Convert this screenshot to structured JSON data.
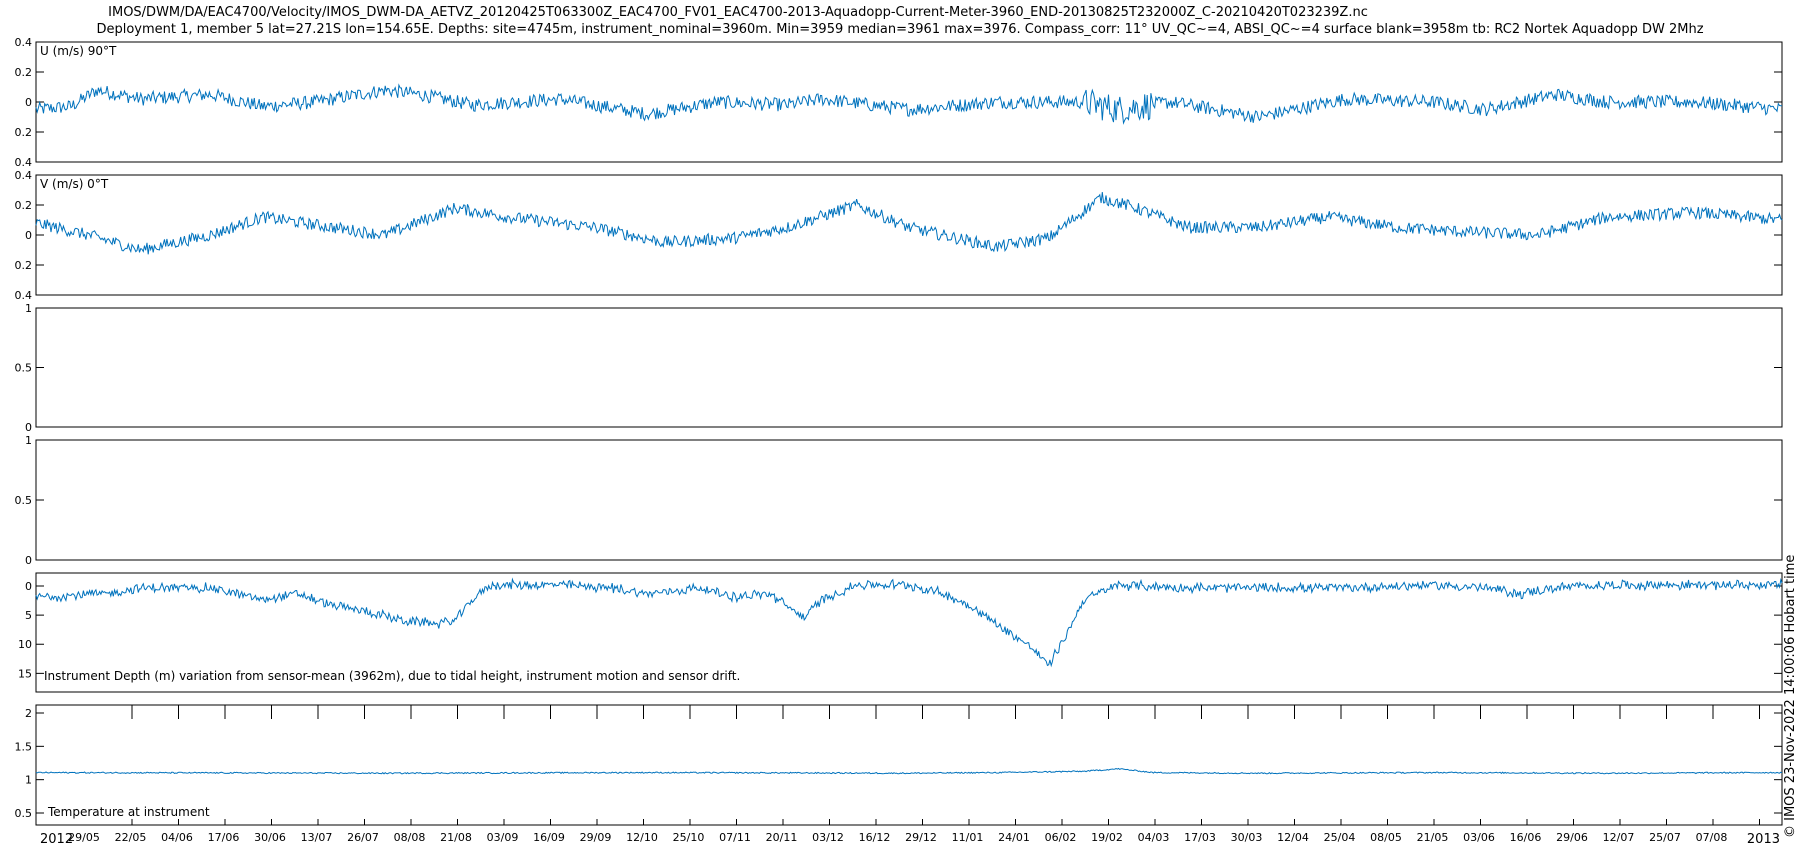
{
  "header": {
    "title_line1": "IMOS/DWM/DA/EAC4700/Velocity/IMOS_DWM-DA_AETVZ_20120425T063300Z_EAC4700_FV01_EAC4700-2013-Aquadopp-Current-Meter-3960_END-20130825T232000Z_C-20210420T023239Z.nc",
    "title_line2": "Deployment 1, member 5 lat=27.21S lon=154.65E. Depths: site=4745m, instrument_nominal=3960m. Min=3959 median=3961 max=3976. Compass_corr: 11° UV_QC~=4, ABSI_QC~=4 surface blank=3958m tb: RC2 Nortek Aquadopp DW 2Mhz"
  },
  "stamp": "© IMOS 23-Nov-2022 14:00:06 Hobart time",
  "chart_data": {
    "type": "line",
    "line_color": "#0072bd",
    "x_axis": {
      "tick_labels": [
        "29/05",
        "22/05",
        "04/06",
        "17/06",
        "30/06",
        "13/07",
        "26/07",
        "08/08",
        "21/08",
        "03/09",
        "16/09",
        "29/09",
        "12/10",
        "25/10",
        "07/11",
        "20/11",
        "03/12",
        "16/12",
        "29/12",
        "11/01",
        "24/01",
        "06/02",
        "19/02",
        "04/03",
        "17/03",
        "30/03",
        "12/04",
        "25/04",
        "08/05",
        "21/05",
        "03/06",
        "16/06",
        "29/06",
        "12/07",
        "25/07",
        "07/08"
      ],
      "year_start": "2012",
      "year_end": "2013"
    },
    "panels": [
      {
        "id": "u",
        "label": "U (m/s) 90°T",
        "label_position": "top-left",
        "ylim": [
          -0.4,
          0.4
        ],
        "yticks": [
          "0.4",
          "0.2",
          "0",
          "0.2",
          "0.4"
        ],
        "profile": [
          [
            0,
            -0.05
          ],
          [
            0.02,
            -0.03
          ],
          [
            0.035,
            0.08
          ],
          [
            0.06,
            0.02
          ],
          [
            0.1,
            0.05
          ],
          [
            0.13,
            -0.03
          ],
          [
            0.16,
            0.0
          ],
          [
            0.2,
            0.08
          ],
          [
            0.22,
            0.05
          ],
          [
            0.25,
            -0.02
          ],
          [
            0.3,
            0.02
          ],
          [
            0.35,
            -0.08
          ],
          [
            0.39,
            0.0
          ],
          [
            0.43,
            -0.02
          ],
          [
            0.45,
            0.02
          ],
          [
            0.5,
            -0.05
          ],
          [
            0.55,
            0.0
          ],
          [
            0.6,
            0.0
          ],
          [
            0.62,
            -0.05
          ],
          [
            0.65,
            0.0
          ],
          [
            0.7,
            -0.1
          ],
          [
            0.75,
            0.02
          ],
          [
            0.8,
            0.0
          ],
          [
            0.83,
            -0.05
          ],
          [
            0.87,
            0.05
          ],
          [
            0.9,
            0.0
          ],
          [
            0.95,
            0.0
          ],
          [
            1.0,
            -0.05
          ]
        ],
        "noise": 0.045
      },
      {
        "id": "v",
        "label": "V (m/s) 0°T",
        "label_position": "top-left",
        "ylim": [
          -0.4,
          0.4
        ],
        "yticks": [
          "0.4",
          "0.2",
          "0",
          "0.2",
          "0.4"
        ],
        "profile": [
          [
            0,
            0.08
          ],
          [
            0.03,
            0.0
          ],
          [
            0.06,
            -0.1
          ],
          [
            0.1,
            0.0
          ],
          [
            0.13,
            0.12
          ],
          [
            0.17,
            0.05
          ],
          [
            0.2,
            0.0
          ],
          [
            0.24,
            0.18
          ],
          [
            0.27,
            0.12
          ],
          [
            0.32,
            0.05
          ],
          [
            0.36,
            -0.05
          ],
          [
            0.4,
            -0.02
          ],
          [
            0.43,
            0.05
          ],
          [
            0.47,
            0.2
          ],
          [
            0.5,
            0.05
          ],
          [
            0.55,
            -0.08
          ],
          [
            0.58,
            -0.02
          ],
          [
            0.61,
            0.25
          ],
          [
            0.63,
            0.18
          ],
          [
            0.66,
            0.05
          ],
          [
            0.7,
            0.05
          ],
          [
            0.74,
            0.12
          ],
          [
            0.78,
            0.05
          ],
          [
            0.82,
            0.02
          ],
          [
            0.86,
            0.0
          ],
          [
            0.9,
            0.12
          ],
          [
            0.95,
            0.15
          ],
          [
            1.0,
            0.1
          ]
        ],
        "noise": 0.04
      },
      {
        "id": "empty1",
        "label": "",
        "ylim": [
          0,
          1
        ],
        "yticks": [
          "1",
          "0.5",
          "0"
        ],
        "profile": [],
        "noise": 0
      },
      {
        "id": "empty2",
        "label": "",
        "ylim": [
          0,
          1
        ],
        "yticks": [
          "1",
          "0.5",
          "0"
        ],
        "profile": [],
        "noise": 0
      },
      {
        "id": "depth",
        "label": "Instrument Depth (m) variation from sensor-mean (3962m), due to tidal height, instrument motion and sensor drift.",
        "label_position": "bottom-left",
        "ylim": [
          -17.5,
          2.5
        ],
        "yticks": [
          "0",
          "5",
          "10",
          "15"
        ],
        "profile": [
          [
            0,
            -1.5
          ],
          [
            0.04,
            -1.0
          ],
          [
            0.06,
            0.0
          ],
          [
            0.1,
            0.0
          ],
          [
            0.13,
            -2.0
          ],
          [
            0.15,
            -1.0
          ],
          [
            0.17,
            -3.0
          ],
          [
            0.19,
            -4.0
          ],
          [
            0.21,
            -5.5
          ],
          [
            0.23,
            -6.0
          ],
          [
            0.24,
            -5.5
          ],
          [
            0.25,
            -2.0
          ],
          [
            0.26,
            0.5
          ],
          [
            0.3,
            0.5
          ],
          [
            0.33,
            0.0
          ],
          [
            0.35,
            -1.0
          ],
          [
            0.38,
            0.0
          ],
          [
            0.4,
            -1.5
          ],
          [
            0.42,
            -1.0
          ],
          [
            0.44,
            -5.0
          ],
          [
            0.45,
            -2.0
          ],
          [
            0.47,
            0.5
          ],
          [
            0.5,
            0.5
          ],
          [
            0.52,
            -1.0
          ],
          [
            0.535,
            -3.0
          ],
          [
            0.55,
            -6.0
          ],
          [
            0.57,
            -10.0
          ],
          [
            0.58,
            -13.0
          ],
          [
            0.59,
            -8.0
          ],
          [
            0.6,
            -2.0
          ],
          [
            0.62,
            0.5
          ],
          [
            0.66,
            0.0
          ],
          [
            0.7,
            0.0
          ],
          [
            0.75,
            0.0
          ],
          [
            0.8,
            0.5
          ],
          [
            0.83,
            0.0
          ],
          [
            0.85,
            -1.0
          ],
          [
            0.87,
            0.0
          ],
          [
            0.9,
            0.5
          ],
          [
            0.95,
            0.5
          ],
          [
            1.0,
            0.5
          ]
        ],
        "noise": 0.7
      },
      {
        "id": "temp",
        "label": "Temperature at instrument",
        "label_position": "bottom-left",
        "ylim": [
          0.3,
          2.2
        ],
        "yticks": [
          "2",
          "1.5",
          "1",
          "0.5"
        ],
        "profile": [
          [
            0,
            1.13
          ],
          [
            0.2,
            1.12
          ],
          [
            0.35,
            1.13
          ],
          [
            0.5,
            1.12
          ],
          [
            0.55,
            1.13
          ],
          [
            0.6,
            1.15
          ],
          [
            0.62,
            1.19
          ],
          [
            0.64,
            1.13
          ],
          [
            0.7,
            1.12
          ],
          [
            0.8,
            1.13
          ],
          [
            0.9,
            1.12
          ],
          [
            1.0,
            1.13
          ]
        ],
        "noise": 0.01
      }
    ]
  }
}
